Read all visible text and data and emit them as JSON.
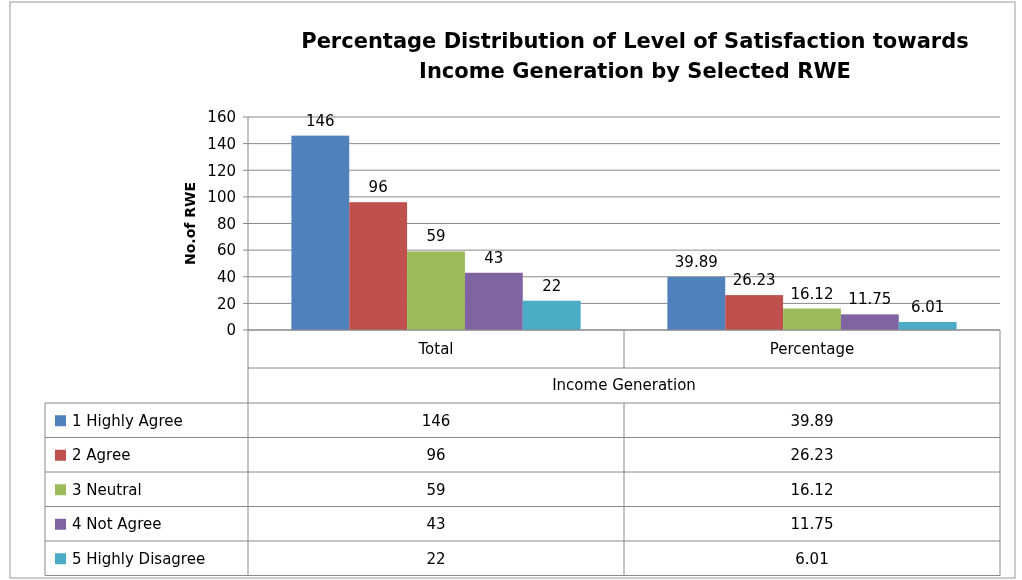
{
  "chart_data": {
    "type": "bar",
    "title": "Percentage Distribution of Level of Satisfaction towards Income Generation by Selected RWE",
    "xlabel": "Income Generation",
    "ylabel": "No.of RWE",
    "categories": [
      "Total",
      "Percentage"
    ],
    "series": [
      {
        "name": "1 Highly Agree",
        "color": "#4f81bd",
        "values": [
          146,
          39.89
        ]
      },
      {
        "name": "2 Agree",
        "color": "#c0504d",
        "values": [
          96,
          26.23
        ]
      },
      {
        "name": "3 Neutral",
        "color": "#9bbb59",
        "values": [
          59,
          16.12
        ]
      },
      {
        "name": "4 Not Agree",
        "color": "#8064a2",
        "values": [
          43,
          11.75
        ]
      },
      {
        "name": "5 Highly Disagree",
        "color": "#4bacc6",
        "values": [
          22,
          6.01
        ]
      }
    ],
    "annotations": [
      "146",
      "39.89",
      "96",
      "26.23",
      "59",
      "16.12",
      "43",
      "11.75",
      "22",
      "6.01"
    ],
    "ylim": [
      0,
      160
    ],
    "yticks": [
      0,
      20,
      40,
      60,
      80,
      100,
      120,
      140,
      160
    ],
    "grid": "y",
    "data_labels": true,
    "legend": "bottom"
  }
}
